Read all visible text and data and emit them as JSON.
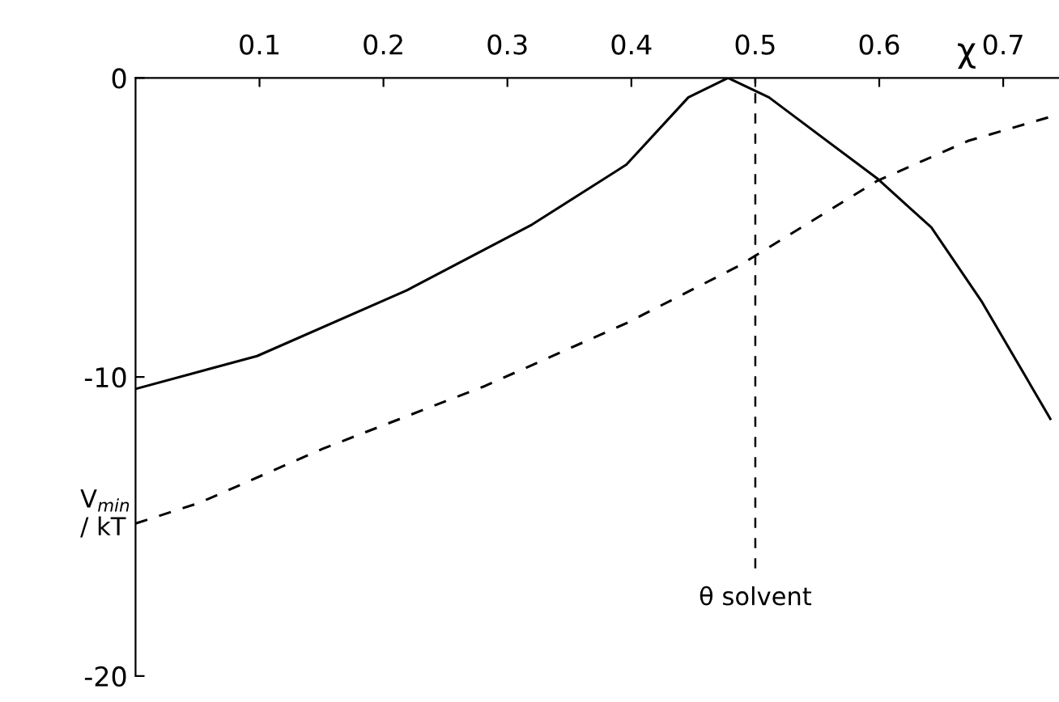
{
  "chart_data": {
    "type": "line",
    "xlabel": "χ",
    "ylabel": "V$_{min}$\n/ kT",
    "xlim": [
      0,
      0.745
    ],
    "ylim": [
      -20,
      0
    ],
    "xticks": [
      0.1,
      0.2,
      0.3,
      0.4,
      0.5,
      0.6,
      0.7
    ],
    "yticks": [
      0,
      -10,
      -20
    ],
    "grid": false,
    "legend": false,
    "marker": "none",
    "series": [
      {
        "color": "#000000",
        "line_style": "solid",
        "x": [
          0,
          0.098,
          0.219,
          0.32,
          0.396,
          0.446,
          0.478,
          0.511,
          0.598,
          0.642,
          0.683,
          0.738
        ],
        "values": [
          -10.4,
          -9.3,
          -7.1,
          -4.9,
          -2.9,
          -0.65,
          0,
          -0.65,
          -3.35,
          -5.0,
          -7.5,
          -11.4
        ]
      },
      {
        "color": "#000000",
        "line_style": "dashed",
        "x": [
          0,
          0.052,
          0.151,
          0.282,
          0.396,
          0.486,
          0.598,
          0.672,
          0.738
        ],
        "values": [
          -14.9,
          -14.2,
          -12.4,
          -10.3,
          -8.2,
          -6.3,
          -3.45,
          -2.1,
          -1.3
        ]
      }
    ],
    "ref_lines": [
      {
        "axis": "x",
        "value": 0.5,
        "label": "θ solvent",
        "color": "#000000",
        "line_style": "dashed"
      }
    ]
  }
}
